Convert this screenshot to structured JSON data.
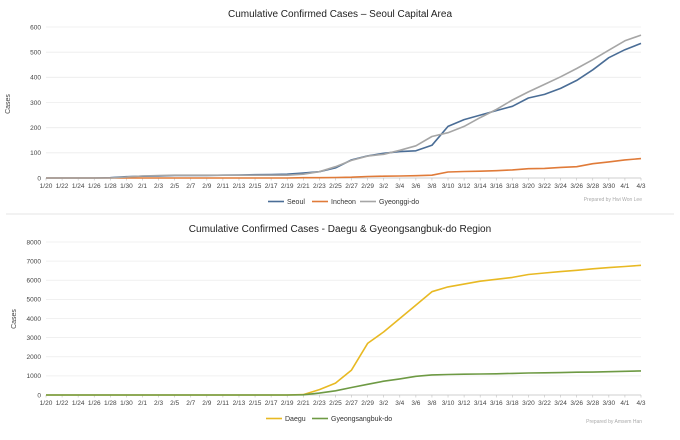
{
  "chart_data": [
    {
      "type": "line",
      "title": "Cumulative Confirmed Cases – Seoul Capital Area",
      "ylabel": "Cases",
      "xlabel": "",
      "ylim": [
        0,
        600
      ],
      "yticks": [
        0,
        100,
        200,
        300,
        400,
        500,
        600
      ],
      "x": [
        "1/20",
        "1/22",
        "1/24",
        "1/26",
        "1/28",
        "1/30",
        "2/1",
        "2/3",
        "2/5",
        "2/7",
        "2/9",
        "2/11",
        "2/13",
        "2/15",
        "2/17",
        "2/19",
        "2/21",
        "2/23",
        "2/25",
        "2/27",
        "2/29",
        "3/2",
        "3/4",
        "3/6",
        "3/8",
        "3/10",
        "3/12",
        "3/14",
        "3/16",
        "3/18",
        "3/20",
        "3/22",
        "3/24",
        "3/26",
        "3/28",
        "3/30",
        "4/1",
        "4/3"
      ],
      "legend_position": "bottom",
      "credit": "Prepared by Hwi Won Lee",
      "series": [
        {
          "name": "Seoul",
          "color": "#4a6d96",
          "values": [
            0,
            0,
            0,
            0,
            1,
            5,
            7,
            8,
            10,
            10,
            10,
            11,
            12,
            13,
            14,
            15,
            20,
            25,
            40,
            72,
            88,
            98,
            105,
            108,
            130,
            205,
            232,
            250,
            268,
            285,
            318,
            332,
            356,
            388,
            430,
            478,
            510,
            535
          ]
        },
        {
          "name": "Incheon",
          "color": "#e07b39",
          "values": [
            0,
            0,
            0,
            0,
            0,
            0,
            0,
            0,
            0,
            0,
            0,
            0,
            0,
            0,
            0,
            0,
            1,
            1,
            2,
            3,
            6,
            7,
            8,
            9,
            11,
            24,
            26,
            27,
            29,
            32,
            37,
            38,
            42,
            45,
            57,
            64,
            72,
            77
          ]
        },
        {
          "name": "Gyeonggi-do",
          "color": "#a6a6a6",
          "values": [
            0,
            0,
            0,
            0,
            0,
            4,
            8,
            10,
            11,
            11,
            11,
            11,
            11,
            11,
            11,
            11,
            15,
            25,
            45,
            70,
            87,
            94,
            110,
            128,
            165,
            180,
            205,
            240,
            272,
            310,
            342,
            372,
            402,
            435,
            470,
            508,
            545,
            568
          ]
        }
      ]
    },
    {
      "type": "line",
      "title": "Cumulative Confirmed Cases - Daegu & Gyeongsangbuk-do Region",
      "ylabel": "Cases",
      "xlabel": "",
      "ylim": [
        0,
        8000
      ],
      "yticks": [
        0,
        1000,
        2000,
        3000,
        4000,
        5000,
        6000,
        7000,
        8000
      ],
      "x": [
        "1/20",
        "1/22",
        "1/24",
        "1/26",
        "1/28",
        "1/30",
        "2/1",
        "2/3",
        "2/5",
        "2/7",
        "2/9",
        "2/11",
        "2/13",
        "2/15",
        "2/17",
        "2/19",
        "2/21",
        "2/23",
        "2/25",
        "2/27",
        "2/29",
        "3/2",
        "3/4",
        "3/6",
        "3/8",
        "3/10",
        "3/12",
        "3/14",
        "3/16",
        "3/18",
        "3/20",
        "3/22",
        "3/24",
        "3/26",
        "3/28",
        "3/30",
        "4/1",
        "4/3"
      ],
      "legend_position": "bottom",
      "credit": "Prepared by Amsem Han",
      "series": [
        {
          "name": "Daegu",
          "color": "#e8b923",
          "values": [
            0,
            0,
            0,
            0,
            0,
            0,
            0,
            0,
            0,
            0,
            0,
            0,
            0,
            0,
            0,
            0,
            20,
            280,
            620,
            1300,
            2700,
            3300,
            4000,
            4700,
            5400,
            5650,
            5800,
            5950,
            6050,
            6150,
            6300,
            6380,
            6450,
            6520,
            6600,
            6660,
            6720,
            6780
          ]
        },
        {
          "name": "Gyeongsangbuk-do",
          "color": "#6e9a44",
          "values": [
            0,
            0,
            0,
            0,
            0,
            0,
            0,
            0,
            0,
            0,
            0,
            0,
            0,
            0,
            0,
            0,
            10,
            100,
            220,
            390,
            560,
            720,
            840,
            980,
            1050,
            1070,
            1090,
            1100,
            1110,
            1130,
            1150,
            1160,
            1170,
            1190,
            1200,
            1220,
            1240,
            1260
          ]
        }
      ]
    }
  ]
}
